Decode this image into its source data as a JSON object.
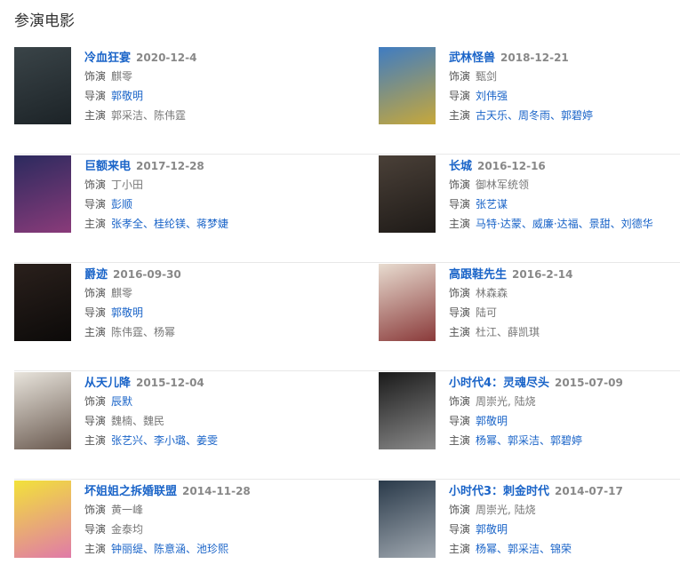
{
  "heading": "参演电影",
  "labels": {
    "role": "饰演",
    "director": "导演",
    "stars": "主演"
  },
  "colors": {
    "link": "#1a64c8",
    "muted": "#777777"
  },
  "movies": [
    {
      "title": "冷血狂宴",
      "date": "2020-12-4",
      "role": {
        "text": "麒零",
        "link": false
      },
      "director": {
        "text": "郭敬明",
        "link": true
      },
      "stars": {
        "text": "郭采洁、陈伟霆",
        "link": false
      },
      "poster": [
        "#3a4448",
        "#1c2327"
      ]
    },
    {
      "title": "武林怪兽",
      "date": "2018-12-21",
      "role": {
        "text": "甄剑",
        "link": false
      },
      "director": {
        "text": "刘伟强",
        "link": true
      },
      "stars": {
        "text": "古天乐、周冬雨、郭碧婷",
        "link": true
      },
      "poster": [
        "#3f7cc2",
        "#c7a83a"
      ]
    },
    {
      "title": "巨额来电",
      "date": "2017-12-28",
      "role": {
        "text": "丁小田",
        "link": false
      },
      "director": {
        "text": "彭顺",
        "link": true
      },
      "stars": {
        "text": "张孝全、桂纶镁、蒋梦婕",
        "link": true
      },
      "poster": [
        "#2b2a5e",
        "#8a3b7a"
      ]
    },
    {
      "title": "长城",
      "date": "2016-12-16",
      "role": {
        "text": "御林军统领",
        "link": false
      },
      "director": {
        "text": "张艺谋",
        "link": true
      },
      "stars": {
        "text": "马特·达蒙、威廉·达福、景甜、刘德华",
        "link": true
      },
      "poster": [
        "#4a4038",
        "#1e1a17"
      ]
    },
    {
      "title": "爵迹",
      "date": "2016-09-30",
      "role": {
        "text": "麒零",
        "link": false
      },
      "director": {
        "text": "郭敬明",
        "link": true
      },
      "stars": {
        "text": "陈伟霆、杨幂",
        "link": false
      },
      "poster": [
        "#2a201c",
        "#0c0a09"
      ]
    },
    {
      "title": "高跟鞋先生",
      "date": "2016-2-14",
      "role": {
        "text": "林森森",
        "link": false
      },
      "director": {
        "text": "陆可",
        "link": false
      },
      "stars": {
        "text": "杜江、薛凯琪",
        "link": false
      },
      "poster": [
        "#e8dcd0",
        "#8a3a3a"
      ]
    },
    {
      "title": "从天儿降",
      "date": "2015-12-04",
      "role": {
        "text": "辰默",
        "link": true
      },
      "director": {
        "text": "魏楠、魏民",
        "link": false
      },
      "stars": {
        "text": "张艺兴、李小璐、姜雯",
        "link": true
      },
      "poster": [
        "#e8e4dc",
        "#6a5a50"
      ]
    },
    {
      "title": "小时代4：灵魂尽头",
      "date": "2015-07-09",
      "role": {
        "text": "周崇光, 陆烧",
        "link": false
      },
      "director": {
        "text": "郭敬明",
        "link": true
      },
      "stars": {
        "text": "杨幂、郭采洁、郭碧婷",
        "link": true
      },
      "poster": [
        "#1a1a1a",
        "#8a8a8a"
      ]
    },
    {
      "title": "坏姐姐之拆婚联盟",
      "date": "2014-11-28",
      "role": {
        "text": "黄一峰",
        "link": false
      },
      "director": {
        "text": "金泰均",
        "link": false
      },
      "stars": {
        "text": "钟丽缇、陈意涵、池珍熙",
        "link": true
      },
      "poster": [
        "#f2e23a",
        "#e07aa8"
      ]
    },
    {
      "title": "小时代3：刺金时代",
      "date": "2014-07-17",
      "role": {
        "text": "周崇光, 陆烧",
        "link": false
      },
      "director": {
        "text": "郭敬明",
        "link": true
      },
      "stars": {
        "text": "杨幂、郭采洁、锦荣",
        "link": true
      },
      "poster": [
        "#2a3a4a",
        "#a0a8b0"
      ]
    }
  ]
}
